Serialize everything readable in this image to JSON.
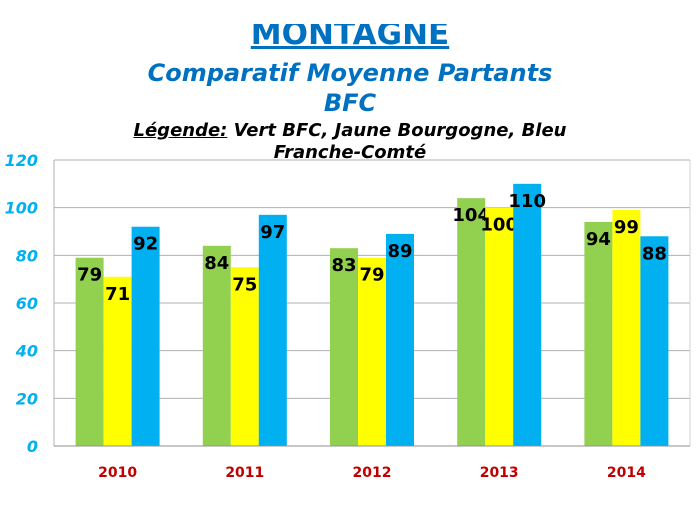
{
  "chart_data": {
    "type": "bar",
    "title": "MONTAGNE",
    "subtitle": "Comparatif  Moyenne  Partants",
    "subtitle2": "BFC",
    "legend_label": "Légende:",
    "legend_text": "Vert BFC, Jaune Bourgogne, Bleu Franche-Comté",
    "categories": [
      "2010",
      "2011",
      "2012",
      "2013",
      "2014"
    ],
    "series": [
      {
        "name": "BFC",
        "color": "#92d050",
        "values": [
          79,
          84,
          83,
          104,
          94
        ]
      },
      {
        "name": "Bourgogne",
        "color": "#ffff00",
        "values": [
          71,
          75,
          79,
          100,
          99
        ]
      },
      {
        "name": "Franche-Comté",
        "color": "#00b0f0",
        "values": [
          92,
          97,
          89,
          110,
          88
        ]
      }
    ],
    "ylim": [
      0,
      120
    ],
    "yticks": [
      "0",
      "20",
      "40",
      "60",
      "80",
      "100",
      "120"
    ],
    "grid": true,
    "colors": {
      "title": "#0070c0",
      "ytick": "#00b0f0",
      "xtick": "#c00000"
    }
  }
}
